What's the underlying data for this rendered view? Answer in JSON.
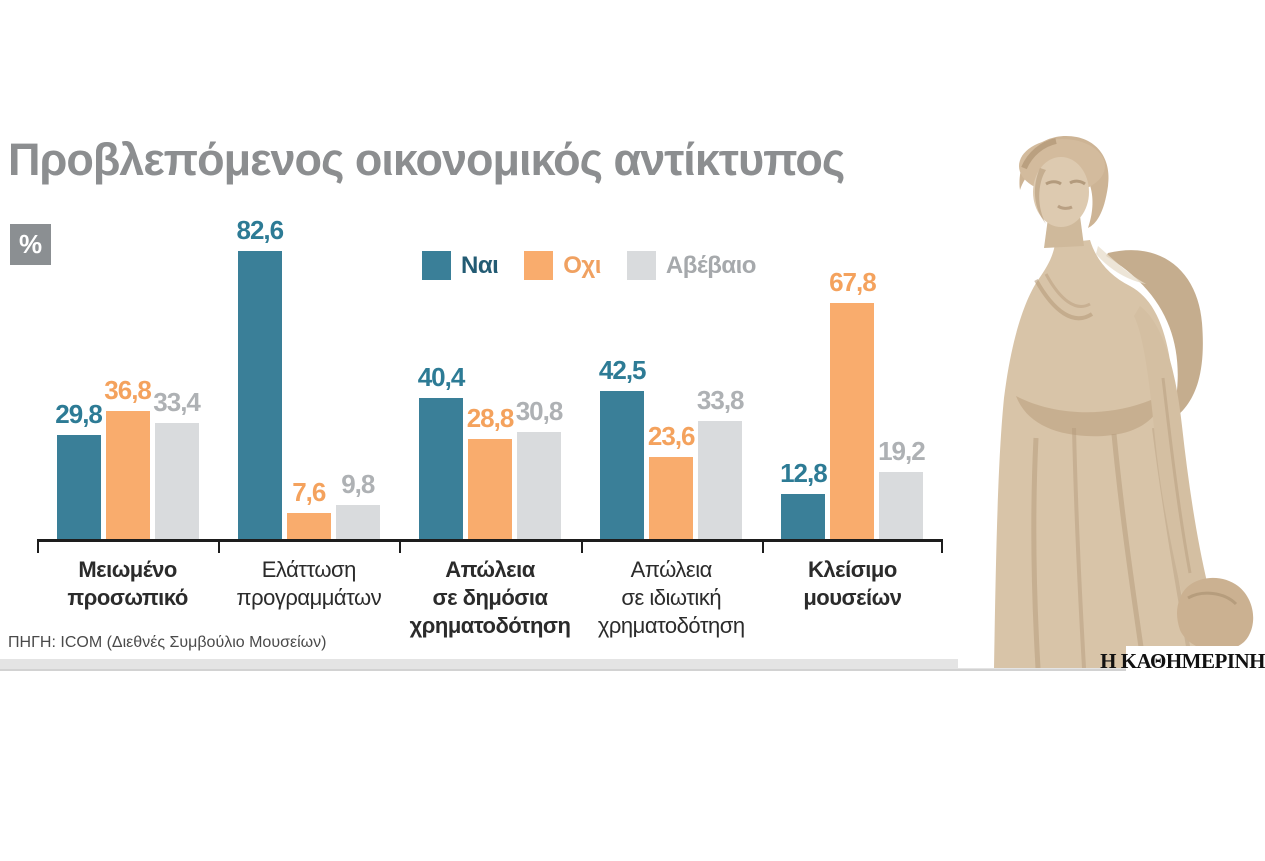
{
  "page": {
    "title": "Προβλεπόμενος οικονομικός αντίκτυπος",
    "unit_badge": "%",
    "source": "ΠΗΓΗ: ICOM (Διεθνές Συμβούλιο Μουσείων)",
    "brand": "Η ΚΑΘΗΜΕΡΙΝΗ"
  },
  "colors": {
    "title_text": "#8c8e90",
    "badge_bg": "#8b8f92",
    "axis": "#1d1d1d",
    "series_bars": [
      "#3a7f98",
      "#f9ac6d",
      "#d9dbdd"
    ],
    "series_labels": [
      "#2d7b95",
      "#f4a25d",
      "#aeb1b4"
    ],
    "legend_texts": [
      "#235b73",
      "#f0a161",
      "#a6a9ac"
    ],
    "strip": "#e4e4e4"
  },
  "chart_data": {
    "type": "bar",
    "title": "Προβλεπόμενος οικονομικός αντίκτυπος",
    "unit": "%",
    "ylim": [
      0,
      90
    ],
    "grid": false,
    "legend_position": "top-center",
    "decimal_separator": ",",
    "categories": [
      "Μειωμένο προσωπικό",
      "Ελάττωση προγραμμάτων",
      "Απώλεια σε δημόσια χρηματοδότηση",
      "Απώλεια σε ιδιωτική χρηματοδότηση",
      "Κλείσιμο μουσείων"
    ],
    "category_lines": [
      [
        "Μειωμένο",
        "προσωπικό"
      ],
      [
        "Ελάττωση",
        "προγραμμάτων"
      ],
      [
        "Απώλεια",
        "σε δημόσια",
        "χρηματοδότηση"
      ],
      [
        "Απώλεια",
        "σε ιδιωτική",
        "χρηματοδότηση"
      ],
      [
        "Κλείσιμο",
        "μουσείων"
      ]
    ],
    "category_bold": [
      true,
      false,
      true,
      false,
      true
    ],
    "series": [
      {
        "name": "Ναι",
        "values": [
          29.8,
          82.6,
          40.4,
          42.5,
          12.8
        ]
      },
      {
        "name": "Οχι",
        "values": [
          36.8,
          7.6,
          28.8,
          23.6,
          67.8
        ]
      },
      {
        "name": "Αβέβαιο",
        "values": [
          33.4,
          9.8,
          30.8,
          33.8,
          19.2
        ]
      }
    ]
  }
}
